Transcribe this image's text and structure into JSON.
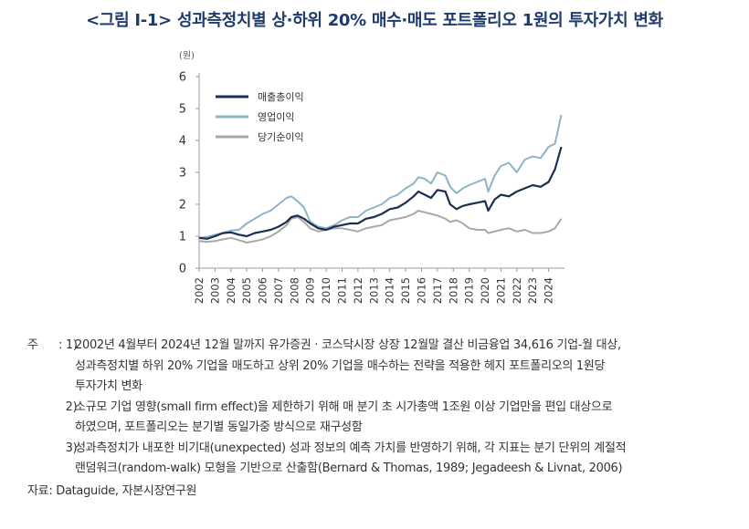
{
  "figure": {
    "title": "<그림 Ⅰ-1> 성과측정치별 상·하위 20% 매수·매도 포트폴리오 1원의 투자가치 변화"
  },
  "chart_data": {
    "type": "line",
    "unit_label": "(원)",
    "ylim": [
      0,
      6
    ],
    "yticks": [
      "0",
      "1",
      "2",
      "3",
      "4",
      "5",
      "6"
    ],
    "xticks": [
      "2002",
      "2003",
      "2004",
      "2005",
      "2006",
      "2007",
      "2008",
      "2009",
      "2010",
      "2011",
      "2012",
      "2013",
      "2014",
      "2015",
      "2016",
      "2017",
      "2018",
      "2019",
      "2020",
      "2021",
      "2022",
      "2023",
      "2024"
    ],
    "legend_position": "top-left",
    "grid": false,
    "series": [
      {
        "name": "매출총이익",
        "color": "#1c2f52",
        "x": [
          2002.0,
          2002.5,
          2003.0,
          2003.5,
          2004.0,
          2004.5,
          2005.0,
          2005.5,
          2006.0,
          2006.5,
          2007.0,
          2007.5,
          2007.8,
          2008.2,
          2008.6,
          2009.0,
          2009.5,
          2010.0,
          2010.5,
          2011.0,
          2011.5,
          2012.0,
          2012.5,
          2013.0,
          2013.5,
          2014.0,
          2014.5,
          2015.0,
          2015.5,
          2015.8,
          2016.2,
          2016.6,
          2017.0,
          2017.5,
          2017.8,
          2018.2,
          2018.6,
          2019.0,
          2019.5,
          2020.0,
          2020.2,
          2020.6,
          2021.0,
          2021.5,
          2022.0,
          2022.5,
          2023.0,
          2023.5,
          2024.0,
          2024.4,
          2024.8
        ],
        "y": [
          0.95,
          0.92,
          1.0,
          1.1,
          1.12,
          1.05,
          1.0,
          1.1,
          1.15,
          1.2,
          1.3,
          1.45,
          1.6,
          1.65,
          1.55,
          1.4,
          1.25,
          1.2,
          1.3,
          1.35,
          1.4,
          1.4,
          1.55,
          1.6,
          1.7,
          1.85,
          1.9,
          2.05,
          2.25,
          2.4,
          2.3,
          2.2,
          2.45,
          2.4,
          2.0,
          1.85,
          1.95,
          2.0,
          2.05,
          2.1,
          1.8,
          2.15,
          2.3,
          2.25,
          2.4,
          2.5,
          2.6,
          2.55,
          2.7,
          3.1,
          3.8
        ]
      },
      {
        "name": "영업이익",
        "color": "#8db3c7",
        "x": [
          2002.0,
          2002.5,
          2003.0,
          2003.5,
          2004.0,
          2004.5,
          2005.0,
          2005.5,
          2006.0,
          2006.5,
          2007.0,
          2007.5,
          2007.8,
          2008.2,
          2008.6,
          2009.0,
          2009.5,
          2010.0,
          2010.5,
          2011.0,
          2011.5,
          2012.0,
          2012.5,
          2013.0,
          2013.5,
          2014.0,
          2014.5,
          2015.0,
          2015.5,
          2015.8,
          2016.2,
          2016.6,
          2017.0,
          2017.5,
          2017.8,
          2018.2,
          2018.6,
          2019.0,
          2019.5,
          2020.0,
          2020.2,
          2020.6,
          2021.0,
          2021.5,
          2022.0,
          2022.5,
          2023.0,
          2023.5,
          2024.0,
          2024.4,
          2024.8
        ],
        "y": [
          0.95,
          0.98,
          1.05,
          1.1,
          1.18,
          1.2,
          1.4,
          1.55,
          1.7,
          1.8,
          2.0,
          2.2,
          2.25,
          2.1,
          1.9,
          1.45,
          1.3,
          1.25,
          1.35,
          1.5,
          1.6,
          1.6,
          1.8,
          1.9,
          2.0,
          2.2,
          2.3,
          2.5,
          2.65,
          2.85,
          2.8,
          2.65,
          3.0,
          2.9,
          2.55,
          2.35,
          2.5,
          2.6,
          2.7,
          2.8,
          2.4,
          2.9,
          3.2,
          3.3,
          3.0,
          3.4,
          3.5,
          3.45,
          3.8,
          3.9,
          4.8
        ]
      },
      {
        "name": "당기순이익",
        "color": "#a8a8a8",
        "x": [
          2002.0,
          2002.5,
          2003.0,
          2003.5,
          2004.0,
          2004.5,
          2005.0,
          2005.5,
          2006.0,
          2006.5,
          2007.0,
          2007.5,
          2007.8,
          2008.2,
          2008.6,
          2009.0,
          2009.5,
          2010.0,
          2010.5,
          2011.0,
          2011.5,
          2012.0,
          2012.5,
          2013.0,
          2013.5,
          2014.0,
          2014.5,
          2015.0,
          2015.5,
          2015.8,
          2016.2,
          2016.6,
          2017.0,
          2017.5,
          2017.8,
          2018.2,
          2018.6,
          2019.0,
          2019.5,
          2020.0,
          2020.2,
          2020.6,
          2021.0,
          2021.5,
          2022.0,
          2022.5,
          2023.0,
          2023.5,
          2024.0,
          2024.4,
          2024.8
        ],
        "y": [
          0.85,
          0.82,
          0.85,
          0.9,
          0.95,
          0.88,
          0.8,
          0.85,
          0.9,
          1.0,
          1.15,
          1.35,
          1.55,
          1.6,
          1.45,
          1.25,
          1.15,
          1.2,
          1.25,
          1.25,
          1.2,
          1.15,
          1.25,
          1.3,
          1.35,
          1.5,
          1.55,
          1.6,
          1.7,
          1.8,
          1.75,
          1.7,
          1.65,
          1.55,
          1.45,
          1.5,
          1.4,
          1.25,
          1.2,
          1.2,
          1.1,
          1.15,
          1.2,
          1.25,
          1.15,
          1.2,
          1.1,
          1.1,
          1.15,
          1.25,
          1.55
        ]
      }
    ]
  },
  "notes": {
    "lead": "주",
    "items": [
      {
        "num": "1)",
        "lines": [
          "2002년 4월부터 2024년 12월 말까지 유가증권 · 코스닥시장 상장 12월말 결산 비금융업 34,616 기업-월 대상,",
          "성과측정치별 하위 20% 기업을 매도하고 상위 20% 기업을 매수하는 전략을 적용한 헤지 포트폴리오의 1원당",
          "투자가치 변화"
        ]
      },
      {
        "num": "2)",
        "lines": [
          "소규모 기업 영향(small firm effect)을 제한하기 위해 매 분기 초 시가총액 1조원 이상 기업만을 편입 대상으로",
          "하였으며, 포트폴리오는 분기별 동일가중 방식으로 재구성함"
        ]
      },
      {
        "num": "3)",
        "lines": [
          "성과측정치가 내포한 비기대(unexpected) 성과 정보의 예측 가치를 반영하기 위해, 각 지표는 분기 단위의 계절적",
          "랜덤워크(random-walk) 모형을 기반으로 산출함(Bernard & Thomas, 1989; Jegadeesh & Livnat, 2006)"
        ]
      }
    ],
    "source": "자료: Dataguide, 자본시장연구원"
  }
}
